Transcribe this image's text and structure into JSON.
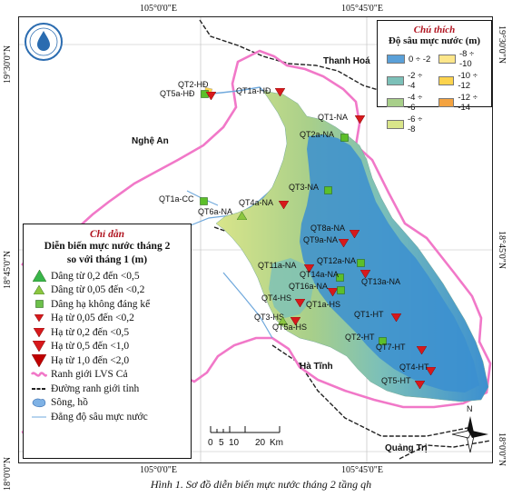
{
  "coords": {
    "top": [
      "105°0'0\"E",
      "105°45'0\"E"
    ],
    "bottom": [
      "105°0'0\"E",
      "105°45'0\"E"
    ],
    "left": [
      "19°30'0\"N",
      "18°45'0\"N",
      "18°0'0\"N"
    ],
    "right": [
      "19°30'0\"N",
      "18°45'0\"N",
      "18°0'0\"N"
    ]
  },
  "places": {
    "thanh_hoa": "Thanh Hoá",
    "nghe_an": "Nghệ An",
    "ha_tinh": "Hà Tĩnh",
    "quang_tri": "Quảng Trị"
  },
  "stations": [
    {
      "id": "qt2-hd",
      "label": "QT2-HĐ",
      "symbol": "sq"
    },
    {
      "id": "qt5a-hd",
      "label": "QT5a-HĐ",
      "symbol": "tri-down"
    },
    {
      "id": "qt1a-hd",
      "label": "QT1a-HĐ",
      "symbol": "tri-down"
    },
    {
      "id": "qt1-na",
      "label": "QT1-NA",
      "symbol": "tri-down"
    },
    {
      "id": "qt2a-na",
      "label": "QT2a-NA",
      "symbol": "sq"
    },
    {
      "id": "qt3-na",
      "label": "QT3-NA",
      "symbol": "sq"
    },
    {
      "id": "qt1a-cc",
      "label": "QT1a-CC",
      "symbol": "sq"
    },
    {
      "id": "qt4a-na",
      "label": "QT4a-NA",
      "symbol": "tri-down"
    },
    {
      "id": "qt6a-na",
      "label": "QT6a-NA",
      "symbol": "tri-up"
    },
    {
      "id": "qt8a-na",
      "label": "QT8a-NA",
      "symbol": "tri-down"
    },
    {
      "id": "qt9a-na",
      "label": "QT9a-NA",
      "symbol": "tri-down"
    },
    {
      "id": "qt12a-na",
      "label": "QT12a-NA",
      "symbol": "sq"
    },
    {
      "id": "qt11a-na",
      "label": "QT11a-NA",
      "symbol": "tri-down"
    },
    {
      "id": "qt14a-na",
      "label": "QT14a-NA",
      "symbol": "sq"
    },
    {
      "id": "qt13a-na",
      "label": "QT13a-NA",
      "symbol": "tri-down"
    },
    {
      "id": "qt16a-na",
      "label": "QT16a-NA",
      "symbol": "tri-down"
    },
    {
      "id": "qt4-hs",
      "label": "QT4-HS",
      "symbol": "tri-down"
    },
    {
      "id": "qt1a-hs",
      "label": "QT1a-HS",
      "symbol": "sq"
    },
    {
      "id": "qt1-ht",
      "label": "QT1-HT",
      "symbol": "tri-down"
    },
    {
      "id": "qt3-hs",
      "label": "QT3-HS",
      "symbol": "tri-down"
    },
    {
      "id": "qt5a-hs",
      "label": "QT5a-HS",
      "symbol": "tri-up"
    },
    {
      "id": "qt2-ht",
      "label": "QT2-HT",
      "symbol": "sq"
    },
    {
      "id": "qt7-ht",
      "label": "QT7-HT",
      "symbol": "tri-down"
    },
    {
      "id": "qt4-ht",
      "label": "QT4-HT",
      "symbol": "tri-down"
    },
    {
      "id": "qt5-ht",
      "label": "QT5-HT",
      "symbol": "tri-down"
    }
  ],
  "legend_left": {
    "title": "Chỉ dẫn",
    "subtitle_1": "Diễn biến mực nước tháng 2",
    "subtitle_2": "so với tháng 1 (m)",
    "items": [
      {
        "label": "Dâng từ 0,2 đến <0,5",
        "symbol": "tri-up",
        "color": "#39b54a",
        "size": 13
      },
      {
        "label": "Dâng từ 0,05 đến <0,2",
        "symbol": "tri-up",
        "color": "#8cc63f",
        "size": 10
      },
      {
        "label": "Dâng hạ không đáng kể",
        "symbol": "sq",
        "color": "#6cc04a",
        "size": 9
      },
      {
        "label": "Hạ từ 0,05 đến <0,2",
        "symbol": "tri-down",
        "color": "#d7191c",
        "size": 8
      },
      {
        "label": "Hạ từ 0,2 đến <0,5",
        "symbol": "tri-down",
        "color": "#d7191c",
        "size": 10
      },
      {
        "label": "Hạ từ 0,5 đến <1,0",
        "symbol": "tri-down",
        "color": "#d7191c",
        "size": 12
      },
      {
        "label": "Hạ từ 1,0 đến <2,0",
        "symbol": "tri-down",
        "color": "#c00000",
        "size": 14
      },
      {
        "label": "Ranh giới LVS Cả",
        "symbol": "pink-line",
        "color": "#f178c8"
      },
      {
        "label": "Đường ranh giới tỉnh",
        "symbol": "dash-line",
        "color": "#222222"
      },
      {
        "label": "Sông, hồ",
        "symbol": "lake",
        "color": "#7fb2e5"
      },
      {
        "label": "Đẳng độ sâu mực nước",
        "symbol": "thin-line",
        "color": "#6fa8dc"
      }
    ]
  },
  "legend_right": {
    "title": "Chú thích",
    "subtitle": "Độ sâu mực nước (m)",
    "items": [
      {
        "label": "0 ÷ -2",
        "color": "#5aa0d8"
      },
      {
        "label": "-8 ÷ -10",
        "color": "#fde68a"
      },
      {
        "label": "-2 ÷ -4",
        "color": "#7cc0b8"
      },
      {
        "label": "-10 ÷ -12",
        "color": "#fcd34d"
      },
      {
        "label": "-4 ÷ -6",
        "color": "#a8cf8a"
      },
      {
        "label": "-12 ÷ -14",
        "color": "#f4a340"
      },
      {
        "label": "-6 ÷ -8",
        "color": "#d9e58a"
      }
    ]
  },
  "scale": {
    "ticks": [
      "0",
      "5",
      "10",
      "20"
    ],
    "unit": "Km"
  },
  "north": "N",
  "caption": "Hình 1. Sơ đồ diễn biến mực nước tháng 2 tầng qh",
  "colors": {
    "boundary": "#f178c8",
    "province": "#222222",
    "deep_blue": "#3b8fd0",
    "mid": "#7cc0b8"
  }
}
